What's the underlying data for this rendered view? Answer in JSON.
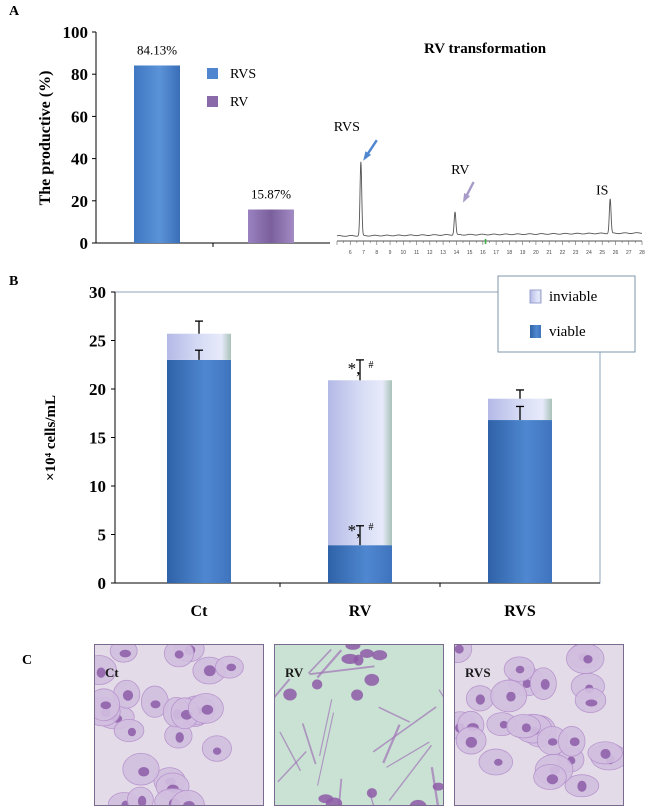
{
  "panels": {
    "a": "A",
    "b": "B",
    "c": "C"
  },
  "chart_data": [
    {
      "type": "bar",
      "panel": "A",
      "ylabel": "The productive (%)",
      "ylim": [
        0,
        100
      ],
      "yticks": [
        0,
        20,
        40,
        60,
        80,
        100
      ],
      "categories": [
        "RVS",
        "RV"
      ],
      "values": [
        84.13,
        15.87
      ],
      "value_labels": [
        "84.13%",
        "15.87%"
      ],
      "legend": [
        "RVS",
        "RV"
      ],
      "colors": {
        "RVS": "#4f86cf",
        "RV": "#8a6aa8"
      }
    },
    {
      "type": "line",
      "panel": "A",
      "title": "RV transformation",
      "xlim": [
        5,
        28
      ],
      "xticks": [
        6,
        7,
        8,
        9,
        10,
        11,
        12,
        13,
        14,
        15,
        16,
        17,
        18,
        19,
        20,
        21,
        22,
        23,
        24,
        25,
        26,
        27,
        28
      ],
      "peaks": [
        {
          "label": "RVS",
          "x": 6.8,
          "height": 0.9
        },
        {
          "label": "RV",
          "x": 13.9,
          "height": 0.28
        },
        {
          "label": "IS",
          "x": 25.6,
          "height": 0.42
        }
      ]
    },
    {
      "type": "bar",
      "panel": "B",
      "stacked": true,
      "ylabel": "×10⁴ cells/mL",
      "ylim": [
        0,
        30
      ],
      "yticks": [
        0,
        5,
        10,
        15,
        20,
        25,
        30
      ],
      "categories": [
        "Ct",
        "RV",
        "RVS"
      ],
      "series": [
        {
          "name": "viable",
          "values": [
            23.0,
            3.9,
            16.8
          ],
          "err": [
            1.0,
            2.0,
            1.4
          ]
        },
        {
          "name": "inviable",
          "values": [
            2.7,
            17.0,
            2.2
          ],
          "err": [
            1.3,
            2.1,
            0.9
          ]
        }
      ],
      "legend": [
        "inviable",
        "viable"
      ],
      "annotations": [
        "*,#",
        "*,#"
      ]
    }
  ],
  "micrographs": [
    {
      "label": "Ct"
    },
    {
      "label": "RV"
    },
    {
      "label": "RVS"
    }
  ]
}
